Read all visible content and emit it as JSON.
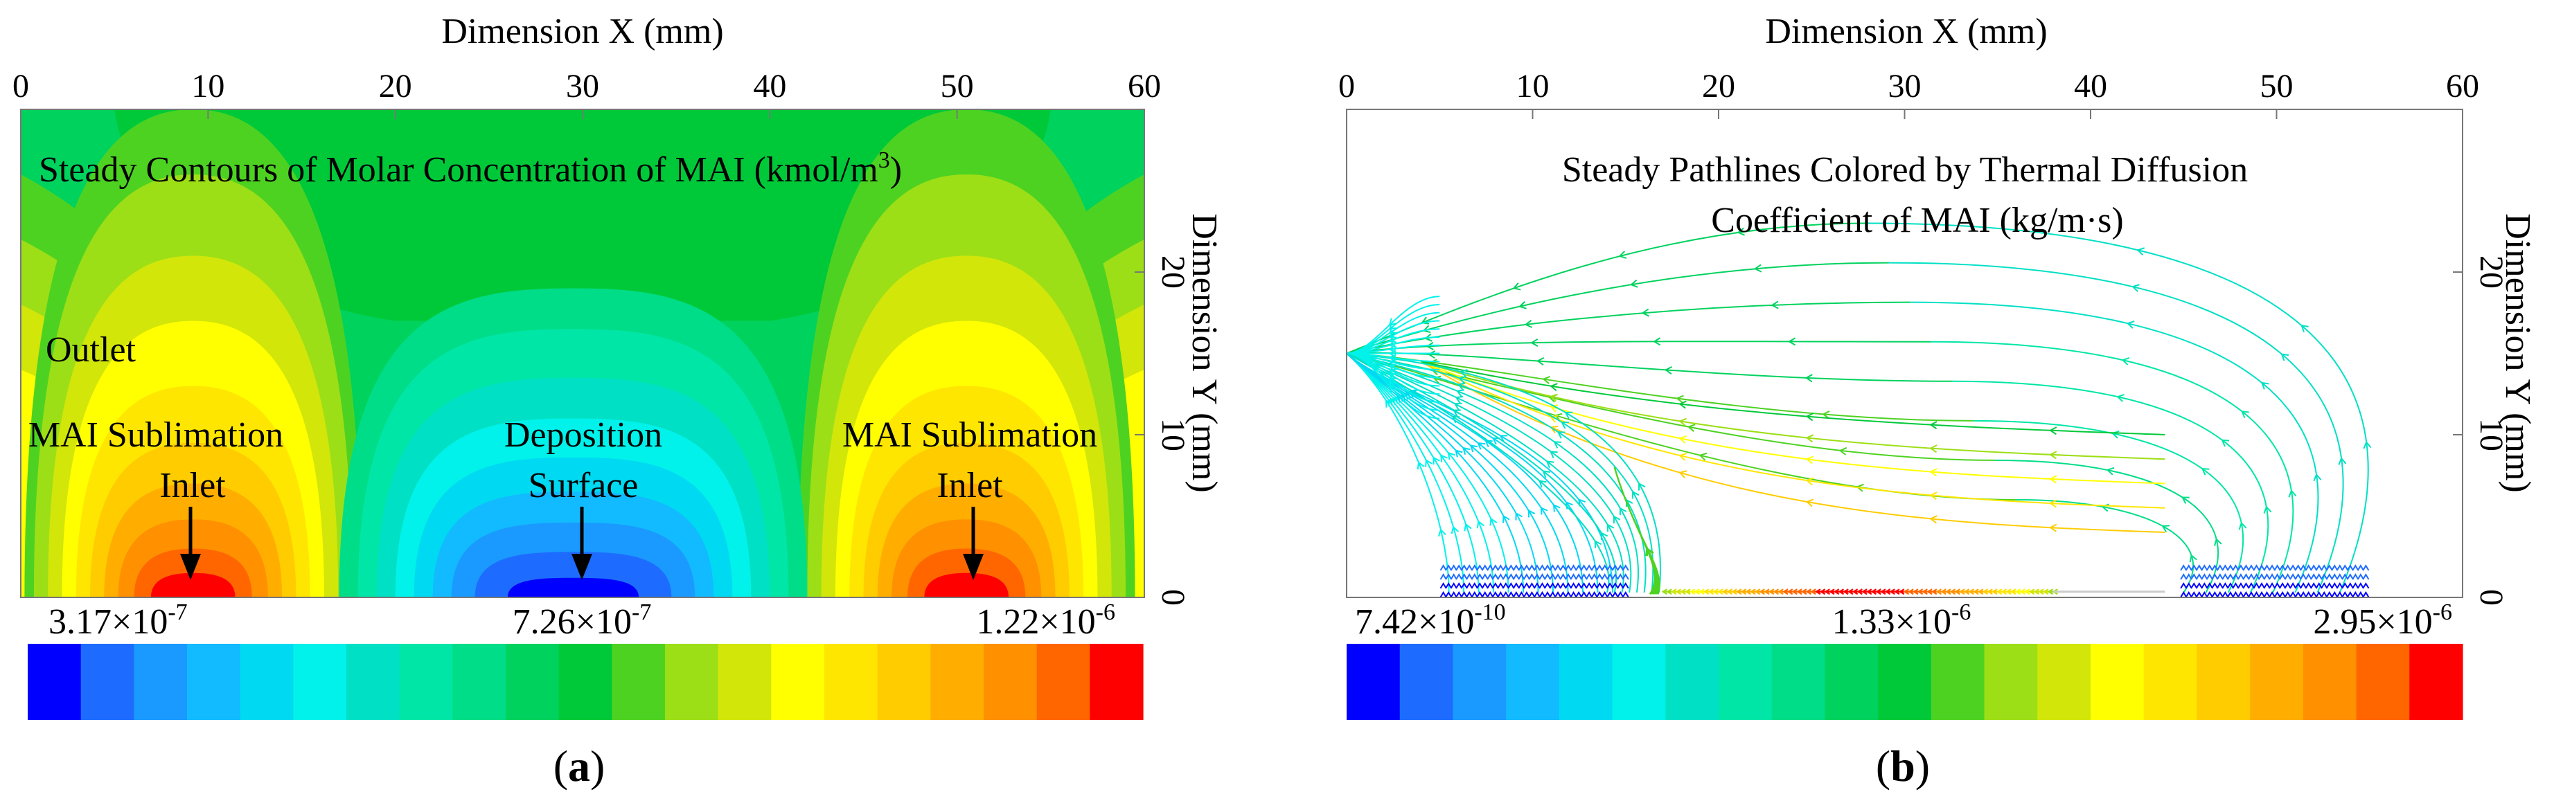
{
  "colors": {
    "scale": [
      "#0000ff",
      "#1e6cff",
      "#1a9aff",
      "#12baff",
      "#00d9f2",
      "#00f2ea",
      "#00e0c4",
      "#00e6a6",
      "#00dd88",
      "#00d25e",
      "#00c939",
      "#4ed222",
      "#9ddf16",
      "#d2e60a",
      "#ffff00",
      "#ffe600",
      "#ffcc00",
      "#ffae00",
      "#ff9000",
      "#ff6600",
      "#ff0000"
    ],
    "arrow": "#000000"
  },
  "panel_a": {
    "letter": "a",
    "title_line": "Steady Contours of Molar Concentration of MAI (kmol/m",
    "title_sup": "3",
    "title_end": ")",
    "labels": {
      "outlet": "Outlet",
      "left_inlet_1": "MAI Sublimation",
      "left_inlet_2": "Inlet",
      "deposition_1": "Deposition",
      "deposition_2": "Surface",
      "right_inlet_1": "MAI Sublimation",
      "right_inlet_2": "Inlet"
    },
    "colorbar": [
      {
        "mantissa": "3.17",
        "times": "×",
        "base": "10",
        "exp": "-7"
      },
      {
        "mantissa": "7.26",
        "times": "×",
        "base": "10",
        "exp": "-7"
      },
      {
        "mantissa": "1.22",
        "times": "×",
        "base": "10",
        "exp": "-6"
      }
    ]
  },
  "panel_b": {
    "letter": "b",
    "title_1": "Steady Pathlines Colored by Thermal Diffusion",
    "title_2": "Coefficient of MAI (kg/m·s)",
    "colorbar": [
      {
        "mantissa": "7.42",
        "times": "×",
        "base": "10",
        "exp": "-10"
      },
      {
        "mantissa": "1.33",
        "times": "×",
        "base": "10",
        "exp": "-6"
      },
      {
        "mantissa": "2.95",
        "times": "×",
        "base": "10",
        "exp": "-6"
      }
    ]
  },
  "chart_data": [
    {
      "type": "heatmap",
      "panel": "a",
      "title": "Steady Contours of Molar Concentration of MAI (kmol/m3)",
      "xlabel": "Dimension X (mm)",
      "ylabel": "Dimension Y (mm)",
      "xlim": [
        0,
        60
      ],
      "ylim": [
        0,
        30
      ],
      "xticks": [
        0,
        10,
        20,
        30,
        40,
        50,
        60
      ],
      "yticks": [
        0,
        10,
        20
      ],
      "xtick_labels": [
        "0",
        "10",
        "20",
        "30",
        "40",
        "50",
        "60"
      ],
      "ytick_labels": [
        "0",
        "10",
        "20"
      ],
      "colorbar": {
        "min": 3.17e-07,
        "mid": 7.26e-07,
        "max": 1.22e-06,
        "levels": 21
      },
      "annotations": [
        {
          "text": "Outlet",
          "x": 4,
          "y": 14
        },
        {
          "text": "MAI Sublimation Inlet",
          "x": 10,
          "y": 0
        },
        {
          "text": "Deposition Surface",
          "x": 29.5,
          "y": 0
        },
        {
          "text": "MAI Sublimation Inlet",
          "x": 49.5,
          "y": 0
        }
      ]
    },
    {
      "type": "scatter",
      "subtype": "pathlines",
      "panel": "b",
      "title": "Steady Pathlines Colored by Thermal Diffusion Coefficient of MAI (kg/m·s)",
      "xlabel": "Dimension X (mm)",
      "ylabel": "Dimension Y (mm)",
      "xlim": [
        0,
        60
      ],
      "ylim": [
        0,
        30
      ],
      "xticks": [
        0,
        10,
        20,
        30,
        40,
        50,
        60
      ],
      "yticks": [
        0,
        10,
        20
      ],
      "xtick_labels": [
        "0",
        "10",
        "20",
        "30",
        "40",
        "50",
        "60"
      ],
      "ytick_labels": [
        "0",
        "10",
        "20"
      ],
      "colorbar": {
        "min": 7.42e-10,
        "mid": 1.33e-06,
        "max": 2.95e-06,
        "levels": 21
      },
      "pathline_groups": [
        {
          "region": "left inlet",
          "x_range": [
            6,
            14
          ],
          "flows_to": "outlet x=0, y=15"
        },
        {
          "region": "substrate",
          "x_range": [
            16,
            42
          ],
          "y": 0.3
        },
        {
          "region": "right inlet",
          "x_range": [
            45,
            54
          ],
          "flows_to": "outlet x=0, y=15"
        }
      ]
    }
  ]
}
